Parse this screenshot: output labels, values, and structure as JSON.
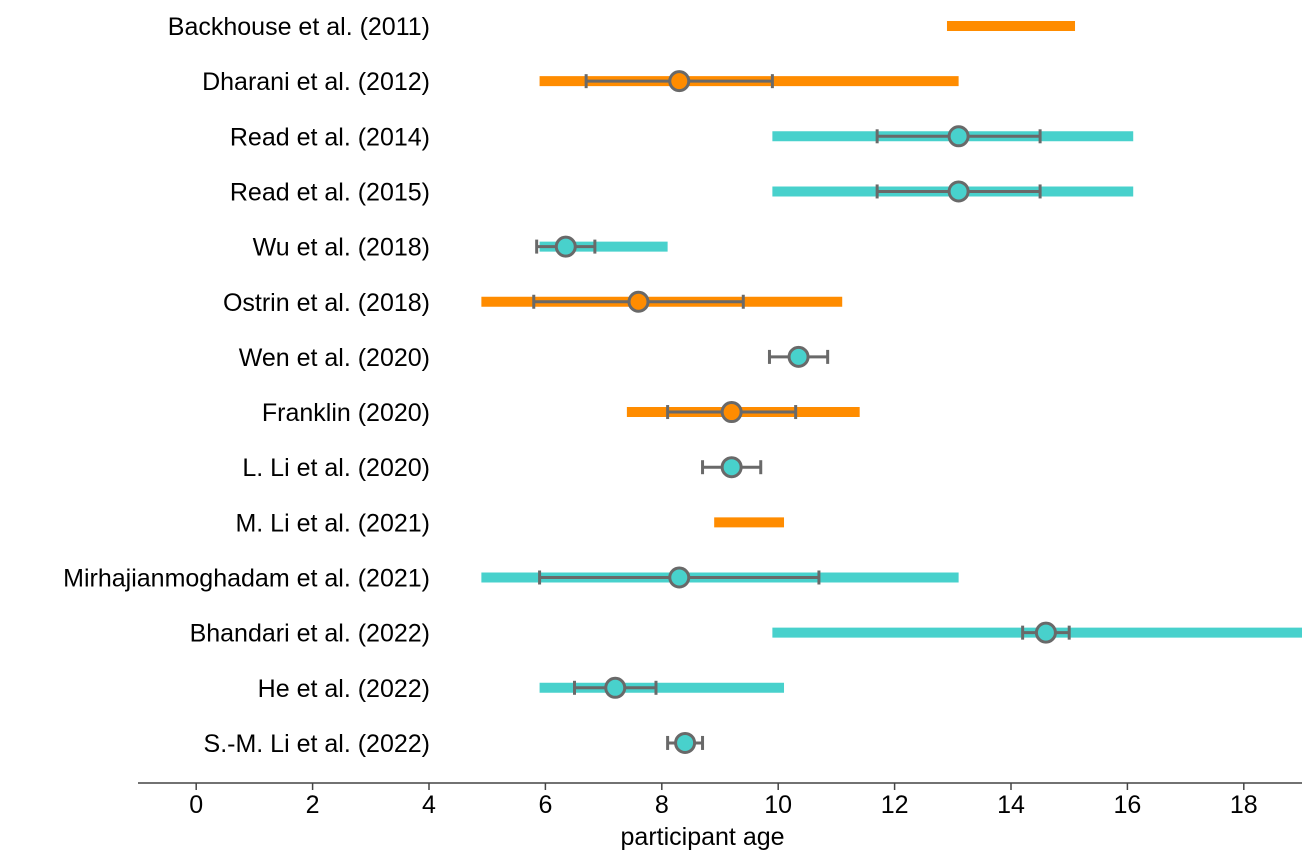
{
  "chart_data": {
    "type": "range-dot",
    "xlabel": "participant age",
    "xlim": [
      -1,
      19
    ],
    "xticks": [
      0,
      2,
      4,
      6,
      8,
      10,
      12,
      14,
      16,
      18
    ],
    "grid": false,
    "colors": {
      "orange": "#ff8c00",
      "cyan": "#48d1cc",
      "whisker": "#696969"
    },
    "studies": [
      {
        "label": "Backhouse et al. (2011)",
        "color": "orange",
        "range": [
          12.9,
          15.1
        ],
        "mean": null,
        "err": null
      },
      {
        "label": "Dharani et al. (2012)",
        "color": "orange",
        "range": [
          5.9,
          13.1
        ],
        "mean": 8.3,
        "err": [
          6.7,
          9.9
        ]
      },
      {
        "label": "Read et al. (2014)",
        "color": "cyan",
        "range": [
          9.9,
          16.1
        ],
        "mean": 13.1,
        "err": [
          11.7,
          14.5
        ]
      },
      {
        "label": "Read et al. (2015)",
        "color": "cyan",
        "range": [
          9.9,
          16.1
        ],
        "mean": 13.1,
        "err": [
          11.7,
          14.5
        ]
      },
      {
        "label": "Wu et al. (2018)",
        "color": "cyan",
        "range": [
          5.9,
          8.1
        ],
        "mean": 6.35,
        "err": [
          5.85,
          6.85
        ]
      },
      {
        "label": "Ostrin et al. (2018)",
        "color": "orange",
        "range": [
          4.9,
          11.1
        ],
        "mean": 7.6,
        "err": [
          5.8,
          9.4
        ]
      },
      {
        "label": "Wen et al. (2020)",
        "color": "cyan",
        "range": null,
        "mean": 10.35,
        "err": [
          9.85,
          10.85
        ]
      },
      {
        "label": "Franklin (2020)",
        "color": "orange",
        "range": [
          7.4,
          11.4
        ],
        "mean": 9.2,
        "err": [
          8.1,
          10.3
        ]
      },
      {
        "label": "L. Li et al. (2020)",
        "color": "cyan",
        "range": null,
        "mean": 9.2,
        "err": [
          8.7,
          9.7
        ]
      },
      {
        "label": "M. Li et al. (2021)",
        "color": "orange",
        "range": [
          8.9,
          10.1
        ],
        "mean": null,
        "err": null
      },
      {
        "label": "Mirhajianmoghadam et al. (2021)",
        "color": "cyan",
        "range": [
          4.9,
          13.1
        ],
        "mean": 8.3,
        "err": [
          5.9,
          10.7
        ]
      },
      {
        "label": "Bhandari et al. (2022)",
        "color": "cyan",
        "range": [
          9.9,
          19.0
        ],
        "mean": 14.6,
        "err": [
          14.2,
          15.0
        ]
      },
      {
        "label": "He et al. (2022)",
        "color": "cyan",
        "range": [
          5.9,
          10.1
        ],
        "mean": 7.2,
        "err": [
          6.5,
          7.9
        ]
      },
      {
        "label": "S.-M. Li et al. (2022)",
        "color": "cyan",
        "range": null,
        "mean": 8.4,
        "err": [
          8.1,
          8.7
        ]
      }
    ]
  }
}
